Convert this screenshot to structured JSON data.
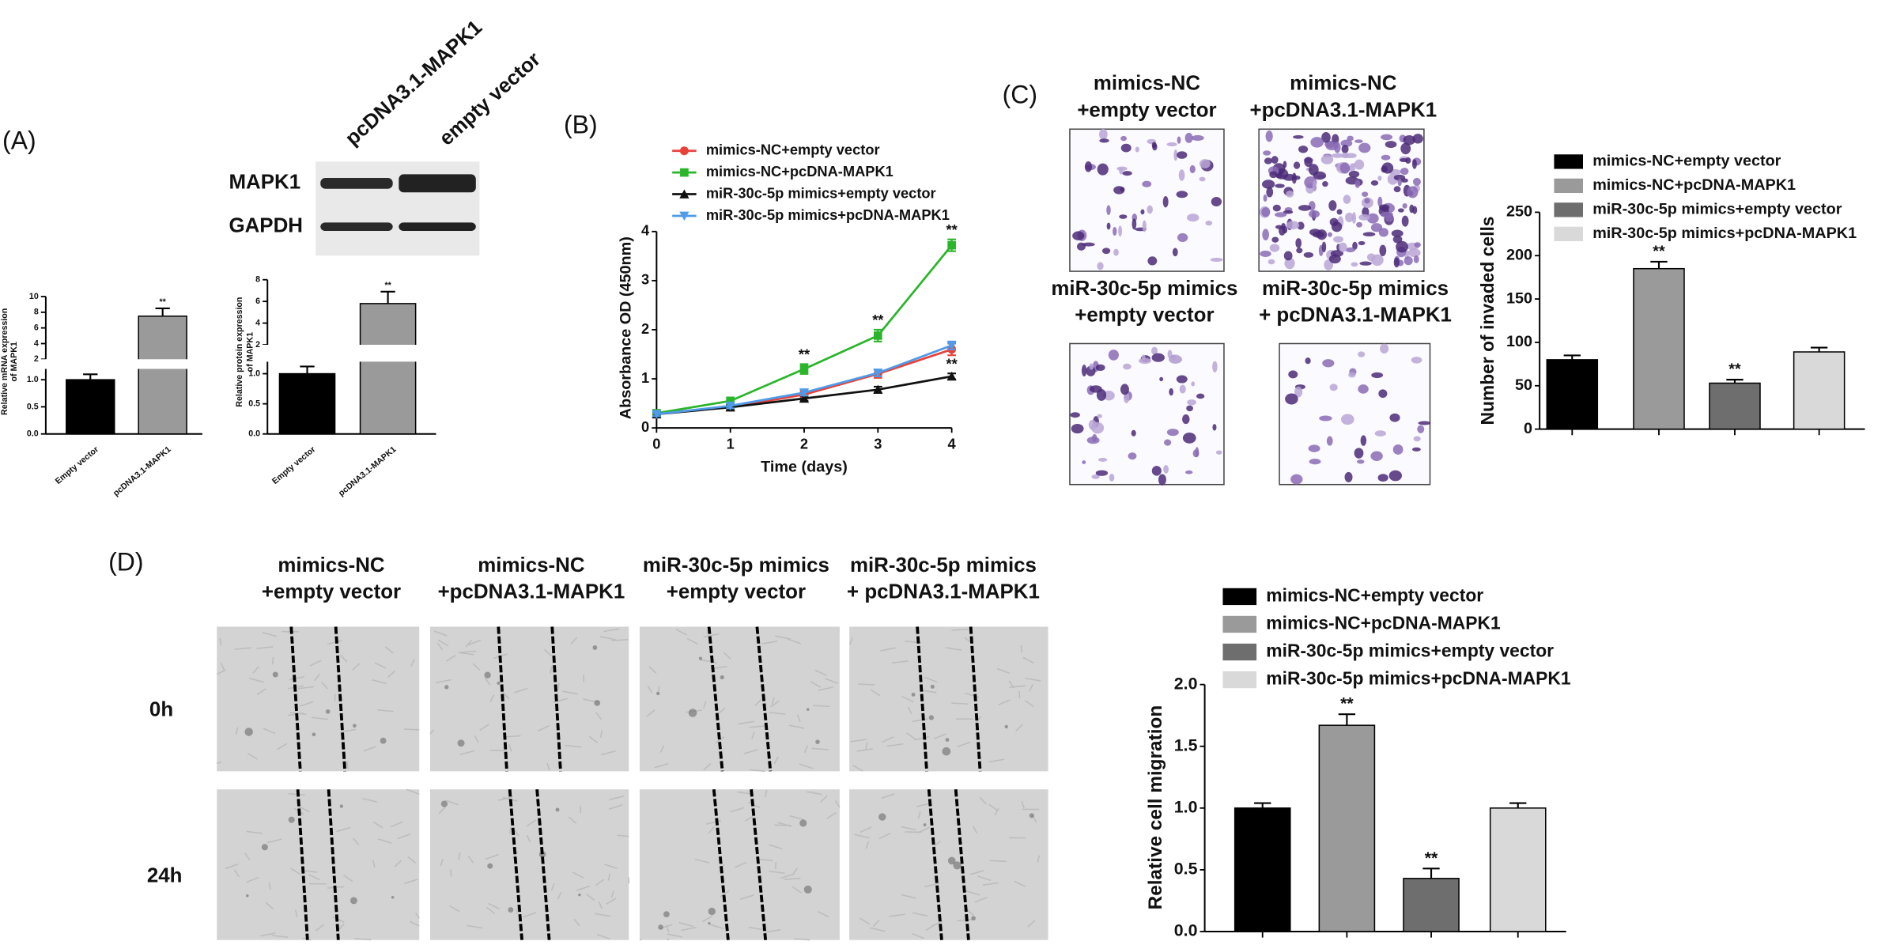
{
  "labels": {
    "panel_a": "(A)",
    "panel_b": "(B)",
    "panel_c": "(C)",
    "panel_d": "(D)"
  },
  "blot": {
    "lanes": [
      "pcDNA3.1-MAPK1",
      "empty vector"
    ],
    "rows": [
      "MAPK1",
      "GAPDH"
    ]
  },
  "invasion_images": [
    [
      "mimics-NC",
      "+empty vector"
    ],
    [
      "mimics-NC",
      "+pcDNA3.1-MAPK1"
    ],
    [
      "miR-30c-5p mimics",
      "+empty vector"
    ],
    [
      "miR-30c-5p mimics",
      "+ pcDNA3.1-MAPK1"
    ]
  ],
  "migration_images": {
    "columns": [
      [
        "mimics-NC",
        "+empty vector"
      ],
      [
        "mimics-NC",
        "+pcDNA3.1-MAPK1"
      ],
      [
        "miR-30c-5p mimics",
        "+empty vector"
      ],
      [
        "miR-30c-5p mimics",
        "+ pcDNA3.1-MAPK1"
      ]
    ],
    "rows": [
      "0h",
      "24h"
    ]
  },
  "chart_data": [
    {
      "type": "bar",
      "ylabel": [
        "Relative mRNA expression",
        "of MAPK1"
      ],
      "categories": [
        "Empty vector",
        "pcDNA3.1-MAPK1"
      ],
      "values": [
        1.0,
        7.5
      ],
      "errors": [
        0.1,
        1.0
      ],
      "colors": [
        "#000000",
        "#9a9a9a"
      ],
      "significance": [
        null,
        "**"
      ],
      "ylim_segments": [
        [
          0,
          1.2
        ],
        [
          2,
          10
        ]
      ],
      "yticks": [
        {
          "value": 0,
          "label": "0.0"
        },
        0.5,
        {
          "value": 1,
          "label": "1.0"
        },
        2,
        4,
        6,
        8,
        10
      ]
    },
    {
      "type": "bar",
      "ylabel": [
        "Relative protein expression",
        "of MAPK1"
      ],
      "categories": [
        "Empty vector",
        "pcDNA3.1-MAPK1"
      ],
      "values": [
        1.0,
        5.8
      ],
      "errors": [
        0.12,
        1.1
      ],
      "colors": [
        "#000000",
        "#9a9a9a"
      ],
      "significance": [
        null,
        "**"
      ],
      "ylim_segments": [
        [
          0,
          1.2
        ],
        [
          2,
          8
        ]
      ],
      "yticks": [
        {
          "value": 0,
          "label": "0.0"
        },
        0.5,
        {
          "value": 1,
          "label": "1.0"
        },
        2,
        4,
        6,
        8
      ]
    },
    {
      "type": "line",
      "xlabel": "Time (days)",
      "ylabel": "Absorbance OD (450nm)",
      "x": [
        0,
        1,
        2,
        3,
        4
      ],
      "xlim": [
        0,
        4
      ],
      "xticks": [
        0,
        1,
        2,
        3,
        4
      ],
      "ylim": [
        0,
        4
      ],
      "yticks": [
        0,
        1,
        2,
        3,
        4
      ],
      "series": [
        {
          "name": "mimics-NC+empty vector",
          "color": "#e8413a",
          "marker": "circle",
          "values": [
            0.3,
            0.42,
            0.68,
            1.1,
            1.6
          ],
          "errors": [
            0.05,
            0.05,
            0.06,
            0.08,
            0.12
          ],
          "significance": [
            null,
            null,
            null,
            null,
            null
          ]
        },
        {
          "name": "mimics-NC+pcDNA-MAPK1",
          "color": "#2bb52b",
          "marker": "square",
          "values": [
            0.3,
            0.55,
            1.2,
            1.88,
            3.72
          ],
          "errors": [
            0.05,
            0.07,
            0.1,
            0.12,
            0.12
          ],
          "significance": [
            null,
            null,
            "**",
            "**",
            "**"
          ]
        },
        {
          "name": "miR-30c-5p mimics+empty vector",
          "color": "#111111",
          "marker": "triangle",
          "values": [
            0.28,
            0.42,
            0.6,
            0.78,
            1.05
          ],
          "errors": [
            0.04,
            0.04,
            0.05,
            0.06,
            0.06
          ],
          "significance": [
            null,
            null,
            null,
            null,
            "**"
          ]
        },
        {
          "name": "miR-30c-5p mimics+pcDNA-MAPK1",
          "color": "#4f9be8",
          "marker": "triangle-down",
          "values": [
            0.28,
            0.45,
            0.72,
            1.12,
            1.68
          ],
          "errors": [
            0.04,
            0.05,
            0.06,
            0.07,
            0.08
          ],
          "significance": [
            null,
            null,
            null,
            null,
            null
          ]
        }
      ]
    },
    {
      "type": "grouped-bar",
      "ylabel": "Number of invaded cells",
      "categories": [
        null
      ],
      "ylim": [
        0,
        250
      ],
      "yticks": [
        0,
        50,
        100,
        150,
        200,
        250
      ],
      "series": [
        {
          "name": "mimics-NC+empty vector",
          "color": "#000000",
          "values": [
            80
          ],
          "errors": [
            5
          ],
          "significance": [
            null
          ]
        },
        {
          "name": "mimics-NC+pcDNA-MAPK1",
          "color": "#9a9a9a",
          "values": [
            185
          ],
          "errors": [
            8
          ],
          "significance": [
            "**"
          ]
        },
        {
          "name": "miR-30c-5p mimics+empty vector",
          "color": "#6e6e6e",
          "values": [
            53
          ],
          "errors": [
            4
          ],
          "significance": [
            "**"
          ]
        },
        {
          "name": "miR-30c-5p mimics+pcDNA-MAPK1",
          "color": "#d9d9d9",
          "values": [
            89
          ],
          "errors": [
            5
          ],
          "significance": [
            null
          ]
        }
      ]
    },
    {
      "type": "grouped-bar",
      "ylabel": "Relative cell migration",
      "categories": [
        null
      ],
      "ylim": [
        0,
        2
      ],
      "yticks": [
        {
          "value": 0,
          "label": "0.0"
        },
        0.5,
        {
          "value": 1,
          "label": "1.0"
        },
        1.5,
        {
          "value": 2,
          "label": "2.0"
        }
      ],
      "series": [
        {
          "name": "mimics-NC+empty vector",
          "color": "#000000",
          "values": [
            1.0
          ],
          "errors": [
            0.04
          ],
          "significance": [
            null
          ]
        },
        {
          "name": "mimics-NC+pcDNA-MAPK1",
          "color": "#9a9a9a",
          "values": [
            1.67
          ],
          "errors": [
            0.09
          ],
          "significance": [
            "**"
          ]
        },
        {
          "name": "miR-30c-5p mimics+empty vector",
          "color": "#6e6e6e",
          "values": [
            0.43
          ],
          "errors": [
            0.08
          ],
          "significance": [
            "**"
          ]
        },
        {
          "name": "miR-30c-5p mimics+pcDNA-MAPK1",
          "color": "#d9d9d9",
          "values": [
            1.0
          ],
          "errors": [
            0.04
          ],
          "significance": [
            null
          ]
        }
      ]
    }
  ]
}
